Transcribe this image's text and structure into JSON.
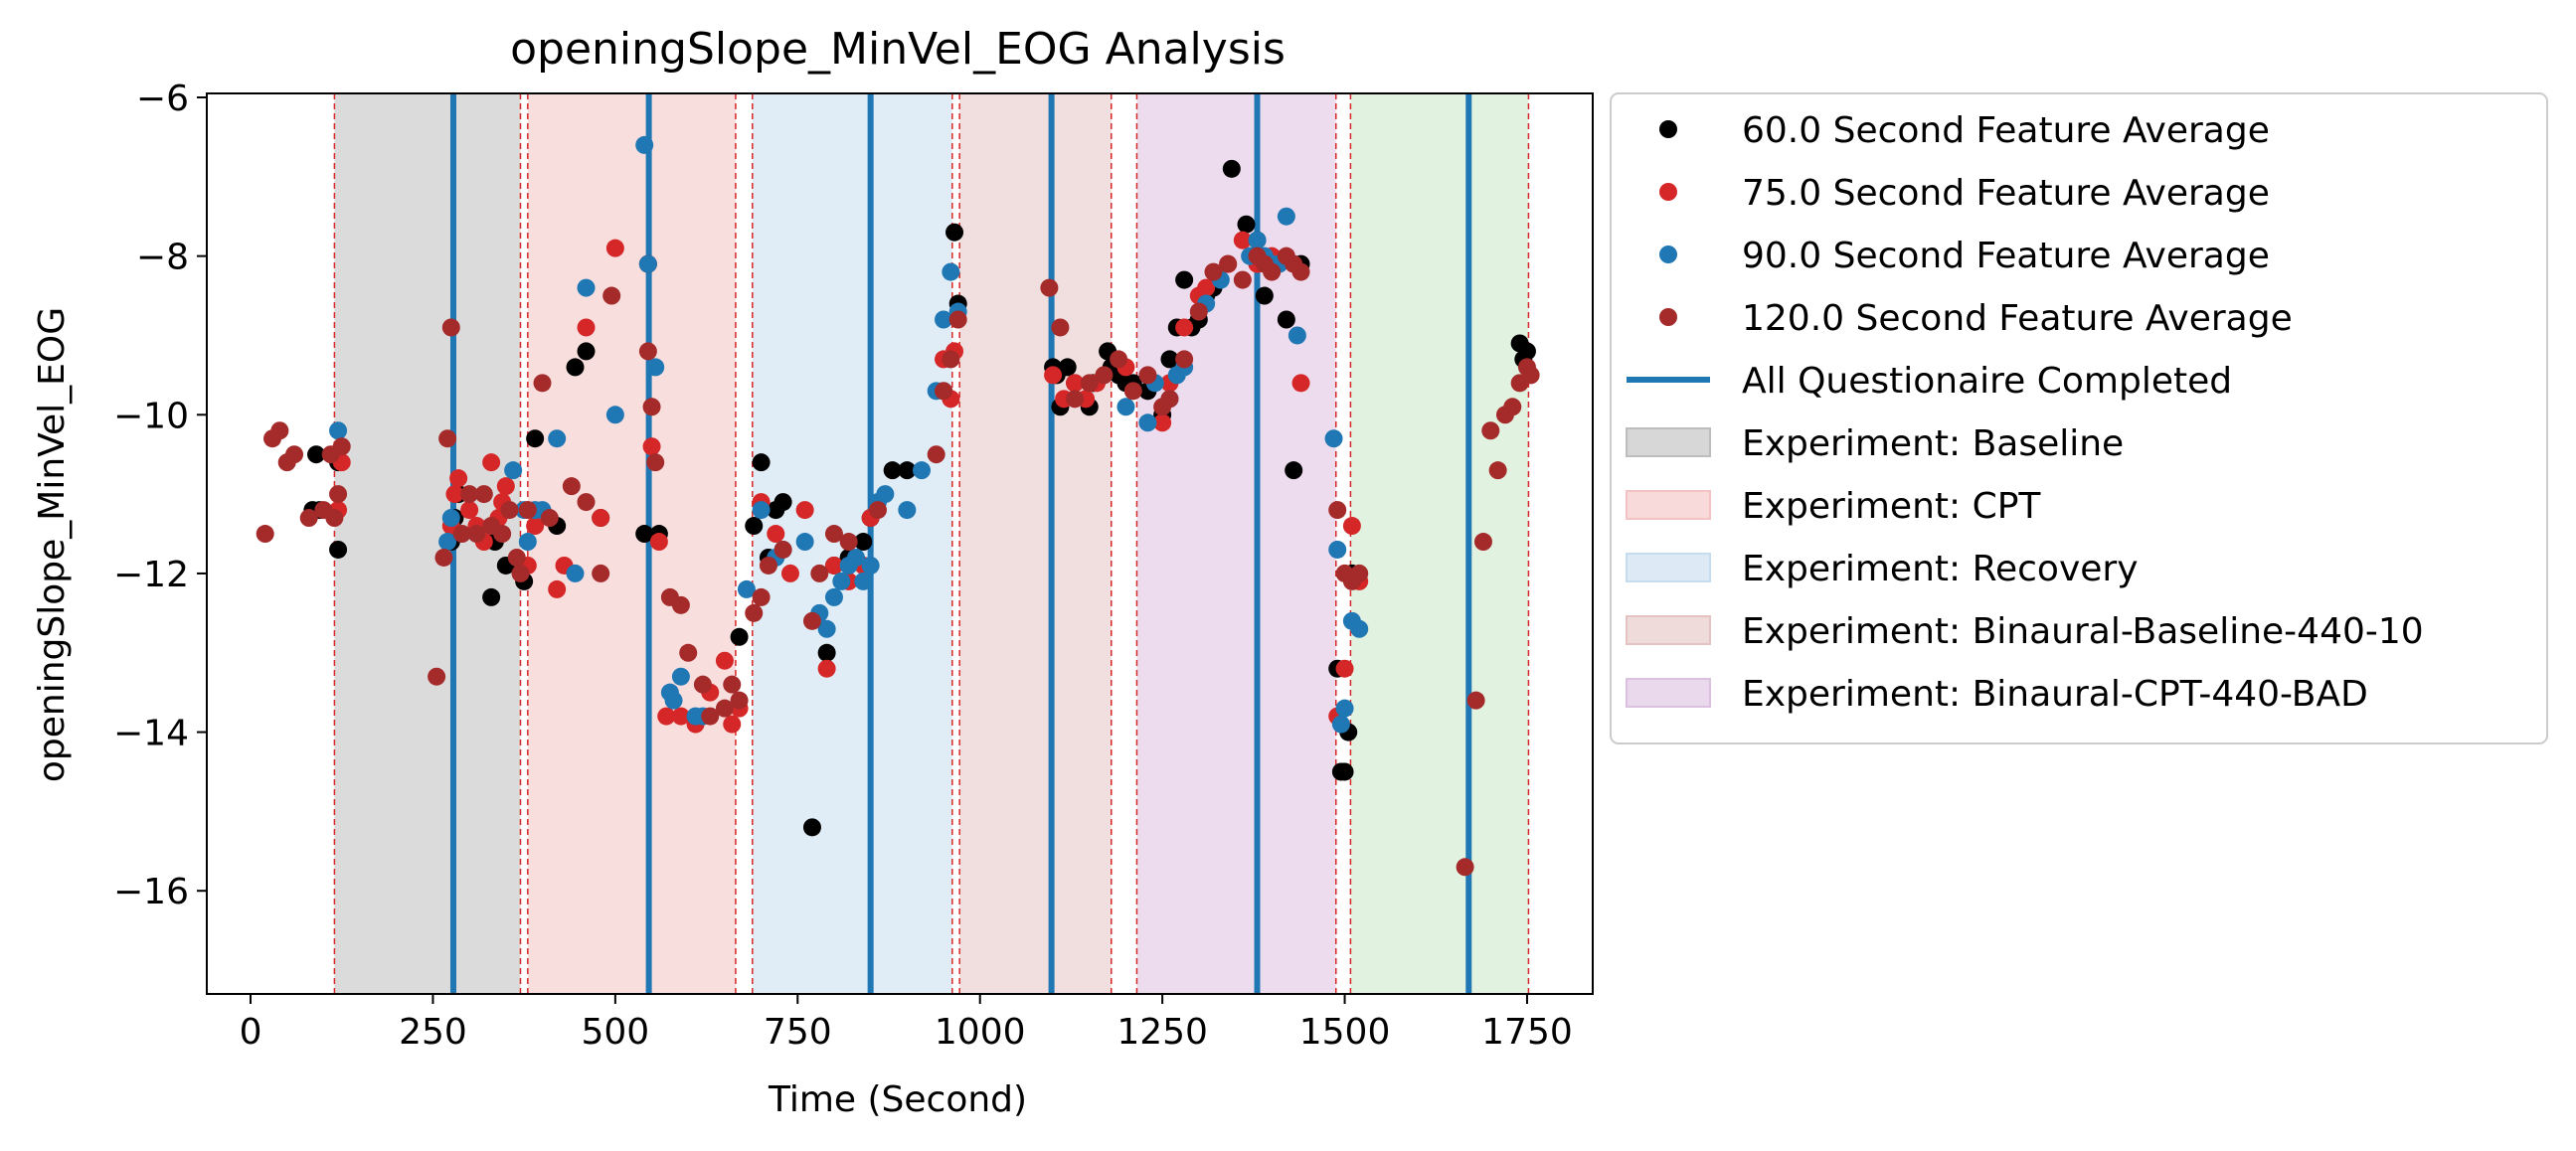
{
  "chart_data": {
    "type": "scatter",
    "title": "openingSlope_MinVel_EOG Analysis",
    "xlabel": "Time (Second)",
    "ylabel": "openingSlope_MinVel_EOG",
    "xlim": [
      -60,
      1840
    ],
    "ylim": [
      -17.3,
      -5.95
    ],
    "xticks": [
      {
        "value": 0,
        "label": "0"
      },
      {
        "value": 250,
        "label": "250"
      },
      {
        "value": 500,
        "label": "500"
      },
      {
        "value": 750,
        "label": "750"
      },
      {
        "value": 1000,
        "label": "1000"
      },
      {
        "value": 1250,
        "label": "1250"
      },
      {
        "value": 1500,
        "label": "1500"
      },
      {
        "value": 1750,
        "label": "1750"
      }
    ],
    "yticks": [
      {
        "value": -16,
        "label": "−16"
      },
      {
        "value": -14,
        "label": "−14"
      },
      {
        "value": -12,
        "label": "−12"
      },
      {
        "value": -10,
        "label": "−10"
      },
      {
        "value": -8,
        "label": "−8"
      },
      {
        "value": -6,
        "label": "−6"
      }
    ],
    "grid": false,
    "legend_position": "outside-right",
    "colors": {
      "s60": "#000000",
      "s75": "#d62728",
      "s90": "#1f77b4",
      "s120": "#a52a2a",
      "questionnaire": "#1f77b4",
      "boundary": "#d62728"
    },
    "phases": [
      {
        "label": "Experiment: Baseline",
        "start": 115,
        "end": 370,
        "color": "#bdbdbd"
      },
      {
        "label": "Experiment: CPT",
        "start": 380,
        "end": 665,
        "color": "#f4c2c2"
      },
      {
        "label": "Experiment: Recovery",
        "start": 688,
        "end": 962,
        "color": "#c6dcef"
      },
      {
        "label": "Experiment: Binaural-Baseline-440-10",
        "start": 972,
        "end": 1180,
        "color": "#e6c3c3"
      },
      {
        "label": "Experiment: Binaural-CPT-440-BAD",
        "start": 1215,
        "end": 1488,
        "color": "#dcc0e0"
      },
      {
        "label": "",
        "start": 1508,
        "end": 1752,
        "color": "#c9e8c9"
      }
    ],
    "phase_boundaries": [
      115,
      370,
      380,
      665,
      688,
      962,
      972,
      1180,
      1215,
      1488,
      1508,
      1752
    ],
    "questionnaire_times": [
      278,
      546,
      850,
      1098,
      1380,
      1670
    ],
    "series": [
      {
        "name": "60.0 Second Feature Average",
        "color": "#000000",
        "x": [
          85,
          90,
          95,
          120,
          120,
          275,
          280,
          285,
          330,
          335,
          340,
          350,
          375,
          390,
          420,
          445,
          460,
          480,
          540,
          545,
          560,
          670,
          690,
          700,
          710,
          720,
          730,
          770,
          790,
          800,
          820,
          840,
          850,
          880,
          900,
          950,
          965,
          970,
          1100,
          1105,
          1110,
          1120,
          1130,
          1150,
          1155,
          1175,
          1180,
          1190,
          1200,
          1210,
          1230,
          1250,
          1260,
          1270,
          1280,
          1290,
          1300,
          1310,
          1320,
          1345,
          1365,
          1380,
          1390,
          1420,
          1430,
          1440,
          1490,
          1495,
          1500,
          1505,
          1510,
          1740,
          1745,
          1750
        ],
        "y": [
          -11.2,
          -10.5,
          -11.2,
          -11.7,
          -10.6,
          -11.6,
          -11.3,
          -11.0,
          -12.3,
          -11.6,
          -11.5,
          -11.9,
          -12.1,
          -10.3,
          -11.4,
          -9.4,
          -9.2,
          -11.3,
          -11.5,
          -8.1,
          -11.5,
          -12.8,
          -11.4,
          -10.6,
          -11.8,
          -11.2,
          -11.1,
          -15.2,
          -13.0,
          -11.9,
          -11.8,
          -11.6,
          -11.3,
          -10.7,
          -10.7,
          -9.7,
          -7.7,
          -8.6,
          -9.4,
          -9.5,
          -9.9,
          -9.4,
          -9.6,
          -9.9,
          -9.6,
          -9.2,
          -9.4,
          -9.5,
          -9.6,
          -9.6,
          -9.7,
          -10.0,
          -9.3,
          -8.9,
          -8.3,
          -8.9,
          -8.8,
          -8.5,
          -8.4,
          -6.9,
          -7.6,
          -7.8,
          -8.5,
          -8.8,
          -10.7,
          -8.1,
          -13.2,
          -14.5,
          -14.5,
          -14.0,
          -12.0,
          -9.1,
          -9.3,
          -9.2
        ]
      },
      {
        "name": "75.0 Second Feature Average",
        "color": "#d62728",
        "x": [
          120,
          125,
          275,
          280,
          285,
          300,
          310,
          320,
          330,
          340,
          345,
          350,
          380,
          390,
          420,
          430,
          460,
          480,
          500,
          545,
          550,
          560,
          570,
          590,
          610,
          630,
          650,
          660,
          670,
          700,
          720,
          740,
          760,
          790,
          800,
          820,
          840,
          850,
          950,
          960,
          965,
          1100,
          1115,
          1130,
          1145,
          1160,
          1200,
          1250,
          1260,
          1280,
          1300,
          1310,
          1340,
          1360,
          1380,
          1400,
          1440,
          1490,
          1500,
          1510,
          1520
        ],
        "y": [
          -11.2,
          -10.6,
          -11.4,
          -11.0,
          -10.8,
          -11.2,
          -11.4,
          -11.6,
          -10.6,
          -11.3,
          -11.1,
          -10.9,
          -11.9,
          -11.4,
          -12.2,
          -11.9,
          -8.9,
          -11.3,
          -7.9,
          -8.1,
          -10.4,
          -11.6,
          -13.8,
          -13.8,
          -13.9,
          -13.5,
          -13.1,
          -13.9,
          -13.7,
          -11.1,
          -11.5,
          -12.0,
          -11.2,
          -13.2,
          -11.9,
          -12.1,
          -11.9,
          -11.3,
          -9.3,
          -9.8,
          -9.2,
          -9.5,
          -9.8,
          -9.6,
          -9.8,
          -9.6,
          -9.4,
          -10.1,
          -9.6,
          -8.9,
          -8.5,
          -8.4,
          -8.1,
          -7.8,
          -8.1,
          -8.0,
          -9.6,
          -13.8,
          -13.2,
          -11.4,
          -12.1
        ]
      },
      {
        "name": "90.0 Second Feature Average",
        "color": "#1f77b4",
        "x": [
          120,
          270,
          275,
          360,
          375,
          380,
          390,
          400,
          420,
          445,
          460,
          500,
          540,
          545,
          555,
          575,
          580,
          590,
          610,
          620,
          680,
          700,
          720,
          730,
          760,
          780,
          790,
          800,
          810,
          820,
          830,
          840,
          850,
          860,
          870,
          900,
          920,
          940,
          950,
          960,
          970,
          1200,
          1230,
          1240,
          1260,
          1270,
          1280,
          1310,
          1330,
          1370,
          1380,
          1390,
          1400,
          1410,
          1420,
          1435,
          1485,
          1490,
          1495,
          1500,
          1510,
          1520
        ],
        "y": [
          -10.2,
          -11.6,
          -11.3,
          -10.7,
          -11.2,
          -11.6,
          -11.2,
          -11.2,
          -10.3,
          -12.0,
          -8.4,
          -10.0,
          -6.6,
          -8.1,
          -9.4,
          -13.5,
          -13.6,
          -13.3,
          -13.8,
          -13.8,
          -12.2,
          -11.2,
          -11.8,
          -11.7,
          -11.6,
          -12.5,
          -12.7,
          -12.3,
          -12.1,
          -11.9,
          -11.8,
          -12.1,
          -11.9,
          -11.1,
          -11.0,
          -11.2,
          -10.7,
          -9.7,
          -8.8,
          -8.2,
          -8.7,
          -9.9,
          -10.1,
          -9.6,
          -9.8,
          -9.5,
          -9.4,
          -8.6,
          -8.3,
          -8.0,
          -7.8,
          -8.0,
          -8.1,
          -8.1,
          -7.5,
          -9.0,
          -10.3,
          -11.7,
          -13.9,
          -13.7,
          -12.6,
          -12.7
        ]
      },
      {
        "name": "120.0 Second Feature Average",
        "color": "#a52a2a",
        "x": [
          20,
          30,
          40,
          50,
          60,
          80,
          100,
          110,
          115,
          120,
          125,
          255,
          265,
          270,
          275,
          290,
          300,
          310,
          320,
          330,
          345,
          355,
          365,
          370,
          380,
          400,
          410,
          440,
          460,
          480,
          495,
          545,
          550,
          555,
          575,
          590,
          600,
          620,
          630,
          650,
          660,
          670,
          690,
          700,
          710,
          730,
          770,
          780,
          800,
          820,
          860,
          940,
          950,
          960,
          970,
          1095,
          1110,
          1130,
          1150,
          1170,
          1190,
          1210,
          1230,
          1250,
          1260,
          1280,
          1300,
          1320,
          1340,
          1360,
          1380,
          1390,
          1400,
          1420,
          1430,
          1440,
          1490,
          1500,
          1510,
          1520,
          1665,
          1680,
          1690,
          1700,
          1710,
          1720,
          1730,
          1740,
          1750,
          1755
        ],
        "y": [
          -11.5,
          -10.3,
          -10.2,
          -10.6,
          -10.5,
          -11.3,
          -11.2,
          -10.5,
          -11.3,
          -11.0,
          -10.4,
          -13.3,
          -11.8,
          -10.3,
          -8.9,
          -11.5,
          -11.0,
          -11.5,
          -11.0,
          -11.4,
          -11.5,
          -11.2,
          -11.8,
          -12.0,
          -11.2,
          -9.6,
          -11.3,
          -10.9,
          -11.1,
          -12.0,
          -8.5,
          -9.2,
          -9.9,
          -10.6,
          -12.3,
          -12.4,
          -13.0,
          -13.4,
          -13.8,
          -13.7,
          -13.4,
          -13.6,
          -12.5,
          -12.3,
          -11.9,
          -11.7,
          -12.6,
          -12.0,
          -11.5,
          -11.6,
          -11.2,
          -10.5,
          -9.7,
          -9.3,
          -8.8,
          -8.4,
          -8.9,
          -9.8,
          -9.6,
          -9.5,
          -9.3,
          -9.7,
          -9.5,
          -9.9,
          -9.8,
          -9.3,
          -8.7,
          -8.2,
          -8.1,
          -8.3,
          -8.0,
          -8.1,
          -8.2,
          -8.0,
          -8.1,
          -8.2,
          -11.2,
          -12.0,
          -12.1,
          -12.0,
          -15.7,
          -13.6,
          -11.6,
          -10.2,
          -10.7,
          -10.0,
          -9.9,
          -9.6,
          -9.4,
          -9.5
        ]
      }
    ],
    "legend": [
      {
        "kind": "marker",
        "color": "#000000",
        "label": "60.0 Second Feature Average"
      },
      {
        "kind": "marker",
        "color": "#d62728",
        "label": "75.0 Second Feature Average"
      },
      {
        "kind": "marker",
        "color": "#1f77b4",
        "label": "90.0 Second Feature Average"
      },
      {
        "kind": "marker",
        "color": "#a52a2a",
        "label": "120.0 Second Feature Average"
      },
      {
        "kind": "line",
        "color": "#1f77b4",
        "label": "All Questionaire Completed"
      },
      {
        "kind": "patch",
        "color": "#bdbdbd",
        "label": "Experiment: Baseline"
      },
      {
        "kind": "patch",
        "color": "#f4c2c2",
        "label": "Experiment: CPT"
      },
      {
        "kind": "patch",
        "color": "#c6dcef",
        "label": "Experiment: Recovery"
      },
      {
        "kind": "patch",
        "color": "#e6c3c3",
        "label": "Experiment: Binaural-Baseline-440-10"
      },
      {
        "kind": "patch",
        "color": "#dcc0e0",
        "label": "Experiment: Binaural-CPT-440-BAD"
      }
    ]
  }
}
